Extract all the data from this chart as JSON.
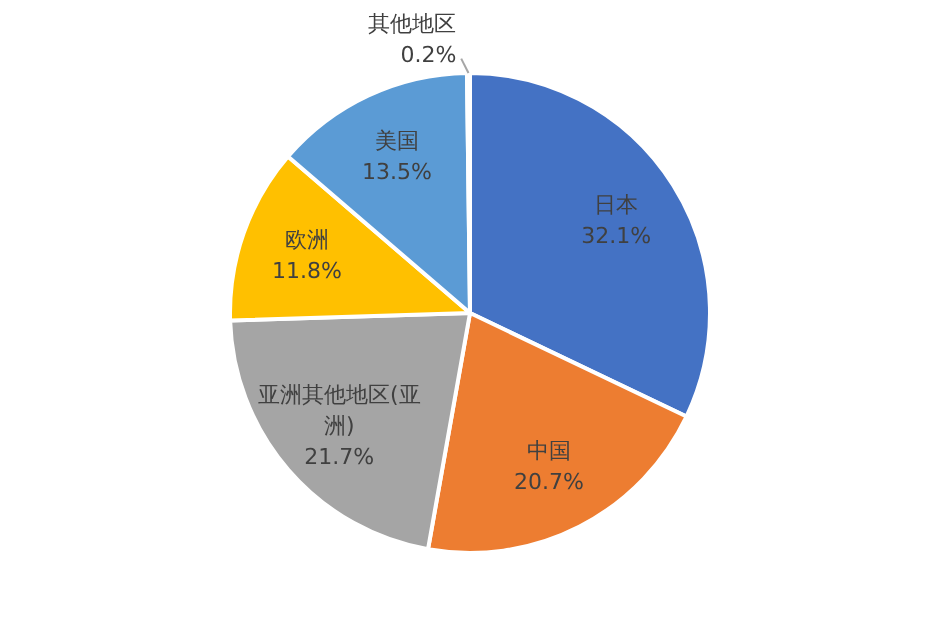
{
  "chart_data": {
    "type": "pie",
    "categories": [
      "日本",
      "中国",
      "亚洲其他地区(亚洲)",
      "欧洲",
      "美国",
      "其他地区"
    ],
    "values": [
      32.1,
      20.7,
      21.7,
      11.8,
      13.5,
      0.2
    ],
    "colors": [
      "#4472c4",
      "#ed7d31",
      "#a5a5a5",
      "#ffc000",
      "#5b9bd5",
      "#70ad47"
    ],
    "value_labels": [
      "32.1%",
      "20.7%",
      "21.7%",
      "11.8%",
      "13.5%",
      "0.2%"
    ]
  }
}
